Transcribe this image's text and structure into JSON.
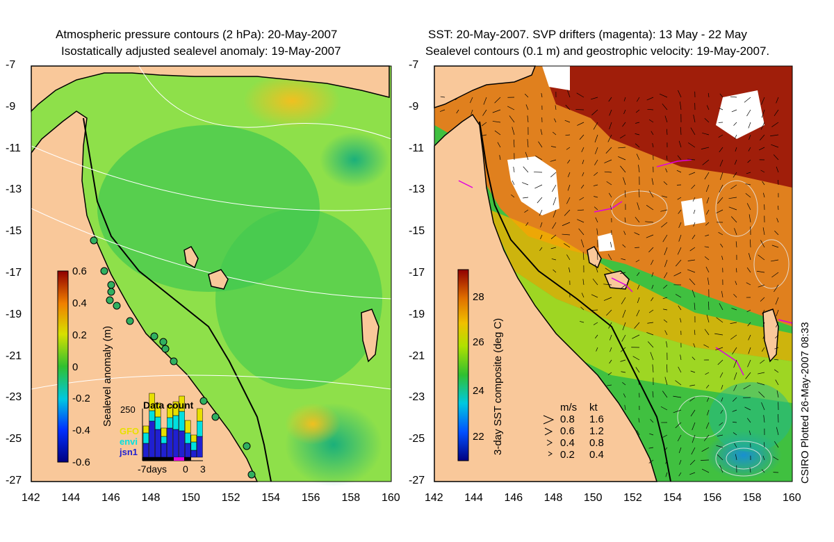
{
  "left_panel": {
    "title_line1": "Atmospheric pressure contours (2 hPa): 20-May-2007",
    "title_line2": "Isostatically adjusted sealevel anomaly: 19-May-2007",
    "colorbar_label": "Sealevel anomaly (m)",
    "colorbar_ticks": [
      "0.6",
      "0.4",
      "0.2",
      "0",
      "-0.2",
      "-0.4",
      "-0.6"
    ],
    "inset": {
      "title": "Data count",
      "y_max_label": "250",
      "x_labels": [
        "-7days",
        "0",
        "3"
      ],
      "series_names": [
        "GFO",
        "envi",
        "jsn1"
      ],
      "series_colors": [
        "#e8e000",
        "#00e0e0",
        "#2020d0"
      ]
    }
  },
  "right_panel": {
    "title_line1": "SST: 20-May-2007. SVP drifters (magenta): 13 May - 22 May",
    "title_line2": "Sealevel contours (0.1 m) and geostrophic velocity: 19-May-2007.",
    "colorbar_label": "3-day SST composite (deg C)",
    "colorbar_ticks": [
      "28",
      "26",
      "24",
      "22"
    ],
    "velocity_legend": {
      "header_ms": "m/s",
      "header_kt": "kt",
      "rows": [
        {
          "ms": "0.8",
          "kt": "1.6"
        },
        {
          "ms": "0.6",
          "kt": "1.2"
        },
        {
          "ms": "0.4",
          "kt": "0.8"
        },
        {
          "ms": "0.2",
          "kt": "0.4"
        }
      ]
    }
  },
  "axes": {
    "y_ticks": [
      "-7",
      "-9",
      "-11",
      "-13",
      "-15",
      "-17",
      "-19",
      "-21",
      "-23",
      "-25",
      "-27"
    ],
    "x_ticks": [
      "142",
      "144",
      "146",
      "148",
      "150",
      "152",
      "154",
      "156",
      "158",
      "160"
    ]
  },
  "credit": "CSIRO Plotted 26-May-2007 08:33",
  "colors": {
    "land": "#f9c89a",
    "ocean_left": "#8ee04a",
    "ocean_right_warm": "#e0801e",
    "ocean_right_hot": "#a01e0a",
    "drifter": "#e000e0"
  }
}
